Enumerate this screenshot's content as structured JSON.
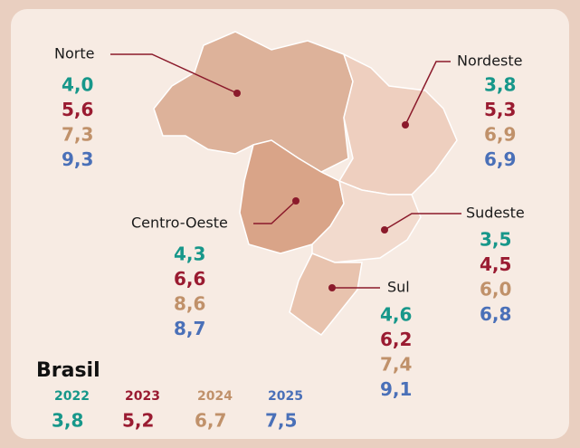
{
  "years": [
    {
      "label": "2022",
      "color": "#17978a"
    },
    {
      "label": "2023",
      "color": "#9a1b31"
    },
    {
      "label": "2024",
      "color": "#c0916a"
    },
    {
      "label": "2025",
      "color": "#4a70b8"
    }
  ],
  "regions": [
    {
      "name": "Norte",
      "values": [
        "4,0",
        "5,6",
        "7,3",
        "9,3"
      ]
    },
    {
      "name": "Nordeste",
      "values": [
        "3,8",
        "5,3",
        "6,9",
        "6,9"
      ]
    },
    {
      "name": "Centro-Oeste",
      "values": [
        "4,3",
        "6,6",
        "8,6",
        "8,7"
      ]
    },
    {
      "name": "Sudeste",
      "values": [
        "3,5",
        "4,5",
        "6,0",
        "6,8"
      ]
    },
    {
      "name": "Sul",
      "values": [
        "4,6",
        "6,2",
        "7,4",
        "9,1"
      ]
    }
  ],
  "brasil": {
    "title": "Brasil",
    "values": [
      "3,8",
      "5,2",
      "6,7",
      "7,5"
    ]
  }
}
